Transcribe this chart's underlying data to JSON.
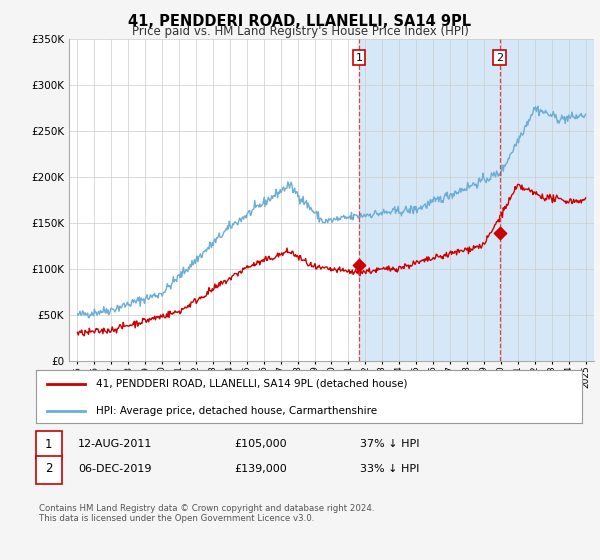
{
  "title": "41, PENDDERI ROAD, LLANELLI, SA14 9PL",
  "subtitle": "Price paid vs. HM Land Registry's House Price Index (HPI)",
  "ylim": [
    0,
    350000
  ],
  "yticks": [
    0,
    50000,
    100000,
    150000,
    200000,
    250000,
    300000,
    350000
  ],
  "ytick_labels": [
    "£0",
    "£50K",
    "£100K",
    "£150K",
    "£200K",
    "£250K",
    "£300K",
    "£350K"
  ],
  "xlim_start": 1994.5,
  "xlim_end": 2025.5,
  "xticks": [
    1995,
    1996,
    1997,
    1998,
    1999,
    2000,
    2001,
    2002,
    2003,
    2004,
    2005,
    2006,
    2007,
    2008,
    2009,
    2010,
    2011,
    2012,
    2013,
    2014,
    2015,
    2016,
    2017,
    2018,
    2019,
    2020,
    2021,
    2022,
    2023,
    2024,
    2025
  ],
  "hpi_color": "#6baed6",
  "price_color": "#cc0000",
  "shade_color": "#d6e8f7",
  "transaction1_year": 2011.617,
  "transaction1_price": 105000,
  "transaction2_year": 2019.921,
  "transaction2_price": 139000,
  "legend_line1": "41, PENDDERI ROAD, LLANELLI, SA14 9PL (detached house)",
  "legend_line2": "HPI: Average price, detached house, Carmarthenshire",
  "table_row1": [
    "1",
    "12-AUG-2011",
    "£105,000",
    "37% ↓ HPI"
  ],
  "table_row2": [
    "2",
    "06-DEC-2019",
    "£139,000",
    "33% ↓ HPI"
  ],
  "footer1": "Contains HM Land Registry data © Crown copyright and database right 2024.",
  "footer2": "This data is licensed under the Open Government Licence v3.0.",
  "bg_color": "#f5f5f5",
  "chart_bg": "#ffffff",
  "grid_color": "#cccccc"
}
